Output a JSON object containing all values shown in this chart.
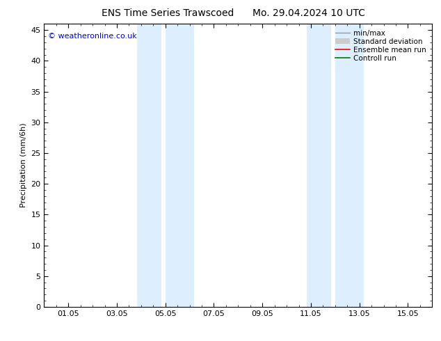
{
  "title_left": "ENS Time Series Trawscoed",
  "title_right": "Mo. 29.04.2024 10 UTC",
  "ylabel": "Precipitation (mm/6h)",
  "ylim": [
    0,
    46
  ],
  "yticks": [
    0,
    5,
    10,
    15,
    20,
    25,
    30,
    35,
    40,
    45
  ],
  "xtick_labels": [
    "01.05",
    "03.05",
    "05.05",
    "07.05",
    "09.05",
    "11.05",
    "13.05",
    "15.05"
  ],
  "xtick_positions": [
    1,
    3,
    5,
    7,
    9,
    11,
    13,
    15
  ],
  "xlim": [
    0,
    16
  ],
  "shaded_bands": [
    {
      "xmin": 3.83,
      "xmax": 4.83
    },
    {
      "xmin": 5.0,
      "xmax": 6.17
    },
    {
      "xmin": 10.83,
      "xmax": 11.83
    },
    {
      "xmin": 12.0,
      "xmax": 13.17
    }
  ],
  "shade_color": "#ddeeff",
  "background_color": "#ffffff",
  "watermark_text": "© weatheronline.co.uk",
  "watermark_color": "#0000cc",
  "watermark_fontsize": 8,
  "legend_entries": [
    {
      "label": "min/max",
      "color": "#999999",
      "lw": 1.0,
      "type": "line"
    },
    {
      "label": "Standard deviation",
      "color": "#cccccc",
      "lw": 6,
      "type": "band"
    },
    {
      "label": "Ensemble mean run",
      "color": "#ff0000",
      "lw": 1.2,
      "type": "line"
    },
    {
      "label": "Controll run",
      "color": "#007700",
      "lw": 1.2,
      "type": "line"
    }
  ],
  "title_fontsize": 10,
  "axis_fontsize": 8,
  "tick_fontsize": 8,
  "legend_fontsize": 7.5,
  "fig_width": 6.34,
  "fig_height": 4.9,
  "dpi": 100
}
